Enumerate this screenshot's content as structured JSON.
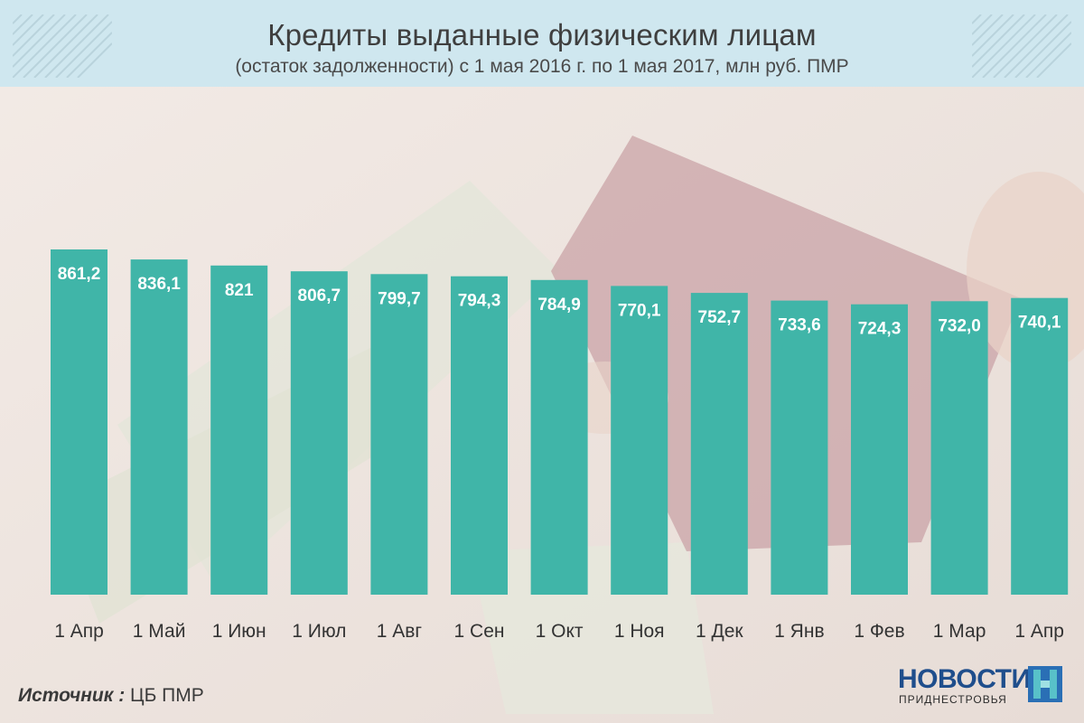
{
  "header": {
    "title": "Кредиты выданные физическим лицам",
    "subtitle": "(остаток задолженности) с 1 мая 2016 г. по 1 мая 2017, млн руб. ПМР"
  },
  "colors": {
    "bar": "#40b5a8",
    "header_bg": "#cfe7ef",
    "label": "#ffffff"
  },
  "chart_data": {
    "type": "bar",
    "categories": [
      "1 Апр",
      "1 Май",
      "1 Июн",
      "1 Июл",
      "1 Авг",
      "1 Сен",
      "1 Окт",
      "1 Ноя",
      "1 Дек",
      "1 Янв",
      "1 Фев",
      "1 Мар",
      "1 Апр"
    ],
    "values": [
      861.2,
      836.1,
      821,
      806.7,
      799.7,
      794.3,
      784.9,
      770.1,
      752.7,
      733.6,
      724.3,
      732.0,
      740.1
    ],
    "value_labels": [
      "861,2",
      "836,1",
      "821",
      "806,7",
      "799,7",
      "794,3",
      "784,9",
      "770,1",
      "752,7",
      "733,6",
      "724,3",
      "732,0",
      "740,1"
    ],
    "title": "Кредиты выданные физическим лицам",
    "subtitle": "(остаток задолженности) с 1 мая 2016 г. по 1 мая 2017, млн руб. ПМР",
    "xlabel": "",
    "ylabel": "",
    "ylim": [
      0,
      861.2
    ],
    "grid": false,
    "legend": "none"
  },
  "footer": {
    "source_label": "Источник :",
    "source_value": "ЦБ ПМР",
    "logo_main": "НОВОСТИ",
    "logo_sub": "ПРИДНЕСТРОВЬЯ"
  }
}
